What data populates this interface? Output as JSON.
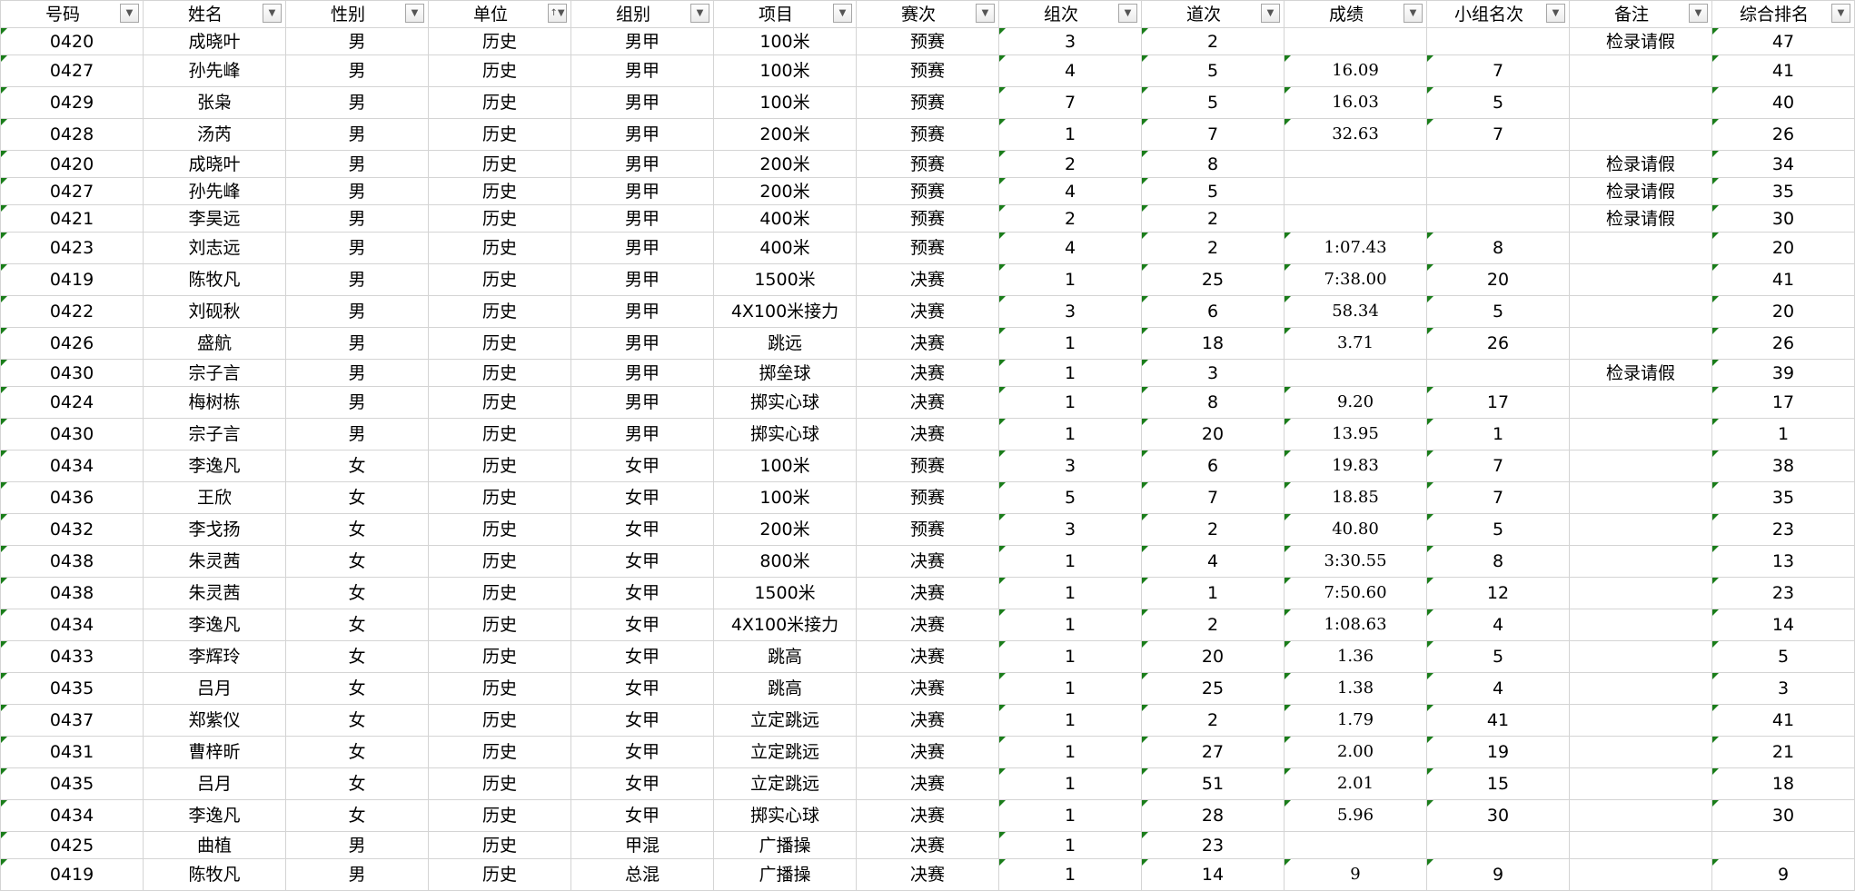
{
  "headers": [
    {
      "label": "号码",
      "filter": "dropdown"
    },
    {
      "label": "姓名",
      "filter": "dropdown"
    },
    {
      "label": "性别",
      "filter": "dropdown"
    },
    {
      "label": "单位",
      "filter": "sort-filter-active"
    },
    {
      "label": "组别",
      "filter": "filter-active"
    },
    {
      "label": "项目",
      "filter": "dropdown"
    },
    {
      "label": "赛次",
      "filter": "dropdown"
    },
    {
      "label": "组次",
      "filter": "dropdown"
    },
    {
      "label": "道次",
      "filter": "dropdown"
    },
    {
      "label": "成绩",
      "filter": "dropdown"
    },
    {
      "label": "小组名次",
      "filter": "dropdown"
    },
    {
      "label": "备注",
      "filter": "dropdown"
    },
    {
      "label": "综合排名",
      "filter": "dropdown"
    }
  ],
  "rows": [
    [
      "0420",
      "成晓叶",
      "男",
      "历史",
      "男甲",
      "100米",
      "预赛",
      "3",
      "2",
      "",
      "",
      "检录请假",
      "47"
    ],
    [
      "0427",
      "孙先峰",
      "男",
      "历史",
      "男甲",
      "100米",
      "预赛",
      "4",
      "5",
      "16.09",
      "7",
      "",
      "41"
    ],
    [
      "0429",
      "张枭",
      "男",
      "历史",
      "男甲",
      "100米",
      "预赛",
      "7",
      "5",
      "16.03",
      "5",
      "",
      "40"
    ],
    [
      "0428",
      "汤芮",
      "男",
      "历史",
      "男甲",
      "200米",
      "预赛",
      "1",
      "7",
      "32.63",
      "7",
      "",
      "26"
    ],
    [
      "0420",
      "成晓叶",
      "男",
      "历史",
      "男甲",
      "200米",
      "预赛",
      "2",
      "8",
      "",
      "",
      "检录请假",
      "34"
    ],
    [
      "0427",
      "孙先峰",
      "男",
      "历史",
      "男甲",
      "200米",
      "预赛",
      "4",
      "5",
      "",
      "",
      "检录请假",
      "35"
    ],
    [
      "0421",
      "李昊远",
      "男",
      "历史",
      "男甲",
      "400米",
      "预赛",
      "2",
      "2",
      "",
      "",
      "检录请假",
      "30"
    ],
    [
      "0423",
      "刘志远",
      "男",
      "历史",
      "男甲",
      "400米",
      "预赛",
      "4",
      "2",
      "1:07.43",
      "8",
      "",
      "20"
    ],
    [
      "0419",
      "陈牧凡",
      "男",
      "历史",
      "男甲",
      "1500米",
      "决赛",
      "1",
      "25",
      "7:38.00",
      "20",
      "",
      "41"
    ],
    [
      "0422",
      "刘砚秋",
      "男",
      "历史",
      "男甲",
      "4X100米接力",
      "决赛",
      "3",
      "6",
      "58.34",
      "5",
      "",
      "20"
    ],
    [
      "0426",
      "盛航",
      "男",
      "历史",
      "男甲",
      "跳远",
      "决赛",
      "1",
      "18",
      "3.71",
      "26",
      "",
      "26"
    ],
    [
      "0430",
      "宗子言",
      "男",
      "历史",
      "男甲",
      "掷垒球",
      "决赛",
      "1",
      "3",
      "",
      "",
      "检录请假",
      "39"
    ],
    [
      "0424",
      "梅树栋",
      "男",
      "历史",
      "男甲",
      "掷实心球",
      "决赛",
      "1",
      "8",
      "9.20",
      "17",
      "",
      "17"
    ],
    [
      "0430",
      "宗子言",
      "男",
      "历史",
      "男甲",
      "掷实心球",
      "决赛",
      "1",
      "20",
      "13.95",
      "1",
      "",
      "1"
    ],
    [
      "0434",
      "李逸凡",
      "女",
      "历史",
      "女甲",
      "100米",
      "预赛",
      "3",
      "6",
      "19.83",
      "7",
      "",
      "38"
    ],
    [
      "0436",
      "王欣",
      "女",
      "历史",
      "女甲",
      "100米",
      "预赛",
      "5",
      "7",
      "18.85",
      "7",
      "",
      "35"
    ],
    [
      "0432",
      "李戈扬",
      "女",
      "历史",
      "女甲",
      "200米",
      "预赛",
      "3",
      "2",
      "40.80",
      "5",
      "",
      "23"
    ],
    [
      "0438",
      "朱灵茜",
      "女",
      "历史",
      "女甲",
      "800米",
      "决赛",
      "1",
      "4",
      "3:30.55",
      "8",
      "",
      "13"
    ],
    [
      "0438",
      "朱灵茜",
      "女",
      "历史",
      "女甲",
      "1500米",
      "决赛",
      "1",
      "1",
      "7:50.60",
      "12",
      "",
      "23"
    ],
    [
      "0434",
      "李逸凡",
      "女",
      "历史",
      "女甲",
      "4X100米接力",
      "决赛",
      "1",
      "2",
      "1:08.63",
      "4",
      "",
      "14"
    ],
    [
      "0433",
      "李辉玲",
      "女",
      "历史",
      "女甲",
      "跳高",
      "决赛",
      "1",
      "20",
      "1.36",
      "5",
      "",
      "5"
    ],
    [
      "0435",
      "吕月",
      "女",
      "历史",
      "女甲",
      "跳高",
      "决赛",
      "1",
      "25",
      "1.38",
      "4",
      "",
      "3"
    ],
    [
      "0437",
      "郑紫仪",
      "女",
      "历史",
      "女甲",
      "立定跳远",
      "决赛",
      "1",
      "2",
      "1.79",
      "41",
      "",
      "41"
    ],
    [
      "0431",
      "曹梓昕",
      "女",
      "历史",
      "女甲",
      "立定跳远",
      "决赛",
      "1",
      "27",
      "2.00",
      "19",
      "",
      "21"
    ],
    [
      "0435",
      "吕月",
      "女",
      "历史",
      "女甲",
      "立定跳远",
      "决赛",
      "1",
      "51",
      "2.01",
      "15",
      "",
      "18"
    ],
    [
      "0434",
      "李逸凡",
      "女",
      "历史",
      "女甲",
      "掷实心球",
      "决赛",
      "1",
      "28",
      "5.96",
      "30",
      "",
      "30"
    ],
    [
      "0425",
      "曲植",
      "男",
      "历史",
      "甲混",
      "广播操",
      "决赛",
      "1",
      "23",
      "",
      "",
      "",
      ""
    ],
    [
      "0419",
      "陈牧凡",
      "男",
      "历史",
      "总混",
      "广播操",
      "决赛",
      "1",
      "14",
      "9",
      "9",
      "",
      "9"
    ]
  ],
  "colors": {
    "error_triangle": "#1a7d1a",
    "gridline": "#d4d4d4"
  }
}
